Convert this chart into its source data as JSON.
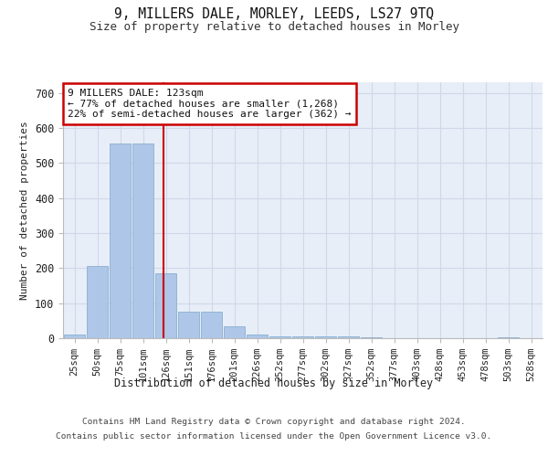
{
  "title1": "9, MILLERS DALE, MORLEY, LEEDS, LS27 9TQ",
  "title2": "Size of property relative to detached houses in Morley",
  "xlabel": "Distribution of detached houses by size in Morley",
  "ylabel": "Number of detached properties",
  "footer1": "Contains HM Land Registry data © Crown copyright and database right 2024.",
  "footer2": "Contains public sector information licensed under the Open Government Licence v3.0.",
  "annotation_line1": "9 MILLERS DALE: 123sqm",
  "annotation_line2": "← 77% of detached houses are smaller (1,268)",
  "annotation_line3": "22% of semi-detached houses are larger (362) →",
  "property_size": 123,
  "bar_color": "#aec6e8",
  "bar_edge_color": "#7fa8c9",
  "grid_color": "#d0d8e8",
  "background_color": "#e8eef8",
  "annotation_box_color": "#ffffff",
  "annotation_box_edge": "#cc0000",
  "vline_color": "#cc0000",
  "categories": [
    "25sqm",
    "50sqm",
    "75sqm",
    "101sqm",
    "126sqm",
    "151sqm",
    "176sqm",
    "201sqm",
    "226sqm",
    "252sqm",
    "277sqm",
    "302sqm",
    "327sqm",
    "352sqm",
    "377sqm",
    "403sqm",
    "428sqm",
    "453sqm",
    "478sqm",
    "503sqm",
    "528sqm"
  ],
  "values": [
    10,
    207,
    555,
    555,
    185,
    75,
    75,
    35,
    10,
    5,
    5,
    5,
    5,
    3,
    0,
    0,
    0,
    0,
    0,
    3,
    0
  ],
  "ylim": [
    0,
    730
  ],
  "yticks": [
    0,
    100,
    200,
    300,
    400,
    500,
    600,
    700
  ]
}
